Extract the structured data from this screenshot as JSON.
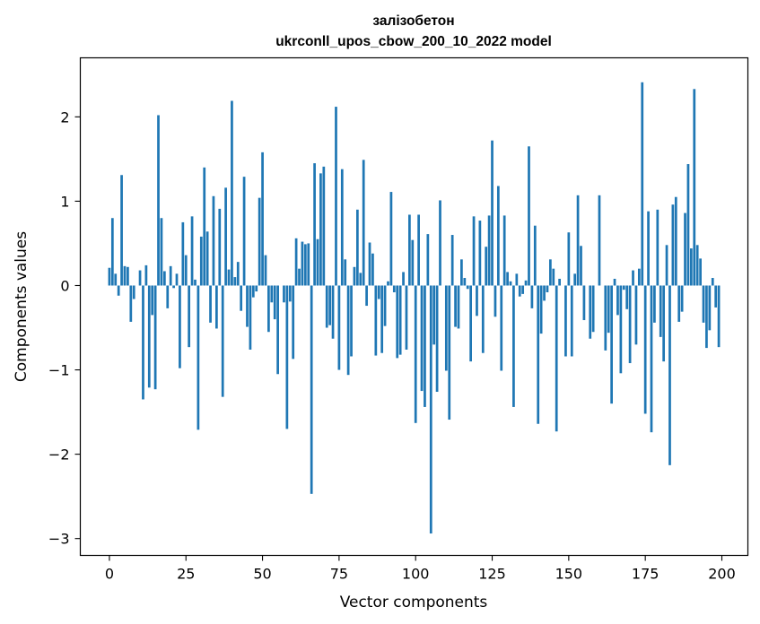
{
  "chart_data": {
    "type": "bar",
    "title": [
      "залізобетон",
      "ukrconll_upos_cbow_200_10_2022 model"
    ],
    "xlabel": "Vector components",
    "ylabel": "Components values",
    "xlim": [
      -9.5,
      208.5
    ],
    "ylim": [
      -3.2,
      2.7
    ],
    "xticks": [
      0,
      25,
      50,
      75,
      100,
      125,
      150,
      175,
      200
    ],
    "xtick_labels": [
      "0",
      "25",
      "50",
      "75",
      "100",
      "125",
      "150",
      "175",
      "200"
    ],
    "yticks": [
      -3,
      -2,
      -1,
      0,
      1,
      2
    ],
    "ytick_labels": [
      "−3",
      "−2",
      "−1",
      "0",
      "1",
      "2"
    ],
    "grid": false,
    "bar_color": "#1f77b4",
    "values": [
      0.21,
      0.8,
      0.14,
      -0.12,
      1.31,
      0.23,
      0.22,
      -0.43,
      -0.16,
      0.0,
      0.18,
      -1.35,
      0.24,
      -1.21,
      -0.35,
      -1.23,
      2.02,
      0.8,
      0.17,
      -0.27,
      0.23,
      -0.03,
      0.14,
      -0.98,
      0.75,
      0.36,
      -0.73,
      0.82,
      0.07,
      -1.71,
      0.58,
      1.4,
      0.64,
      -0.44,
      1.06,
      -0.51,
      0.91,
      -1.32,
      1.16,
      0.19,
      2.19,
      0.1,
      0.28,
      -0.3,
      1.29,
      -0.49,
      -0.76,
      -0.14,
      -0.07,
      1.04,
      1.58,
      0.36,
      -0.55,
      -0.2,
      -0.4,
      -1.05,
      0.0,
      -0.2,
      -1.7,
      -0.19,
      -0.87,
      0.56,
      0.2,
      0.52,
      0.49,
      0.5,
      -2.47,
      1.45,
      0.55,
      1.33,
      1.41,
      -0.5,
      -0.47,
      -0.63,
      2.12,
      -1.0,
      1.38,
      0.31,
      -1.06,
      -0.84,
      0.22,
      0.9,
      0.15,
      1.49,
      -0.24,
      0.51,
      0.38,
      -0.83,
      -0.16,
      -0.8,
      -0.48,
      0.05,
      1.11,
      -0.08,
      -0.86,
      -0.82,
      0.16,
      -0.76,
      0.84,
      0.54,
      -1.63,
      0.84,
      -1.25,
      -1.44,
      0.61,
      -2.94,
      -0.7,
      -1.26,
      1.01,
      0.0,
      -1.01,
      -1.59,
      0.6,
      -0.49,
      -0.51,
      0.31,
      0.09,
      -0.04,
      -0.9,
      0.82,
      -0.36,
      0.77,
      -0.8,
      0.46,
      0.83,
      1.72,
      -0.37,
      1.18,
      -1.01,
      0.83,
      0.16,
      0.05,
      -1.44,
      0.14,
      -0.13,
      -0.1,
      0.06,
      1.65,
      -0.27,
      0.71,
      -1.64,
      -0.57,
      -0.18,
      -0.08,
      0.31,
      0.2,
      -1.73,
      0.08,
      0.0,
      -0.84,
      0.63,
      -0.84,
      0.14,
      1.07,
      0.47,
      -0.41,
      0.0,
      -0.63,
      -0.55,
      0.0,
      1.07,
      0.0,
      -0.77,
      -0.56,
      -1.4,
      0.08,
      -0.35,
      -1.04,
      -0.05,
      -0.28,
      -0.92,
      0.18,
      -0.7,
      0.2,
      2.41,
      -1.52,
      0.88,
      -1.74,
      -0.44,
      0.9,
      -0.61,
      -0.9,
      0.48,
      -2.13,
      0.96,
      1.05,
      -0.43,
      -0.31,
      0.86,
      1.44,
      0.44,
      2.33,
      0.48,
      0.32,
      -0.44,
      -0.74,
      -0.53,
      0.09,
      -0.26,
      -0.73
    ]
  }
}
